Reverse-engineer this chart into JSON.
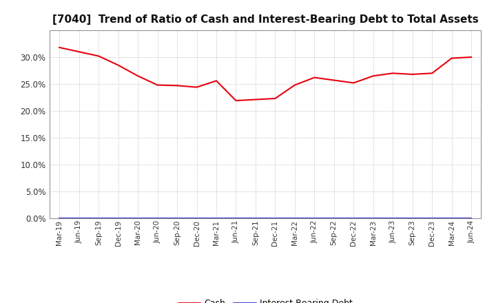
{
  "title": "[7040]  Trend of Ratio of Cash and Interest-Bearing Debt to Total Assets",
  "title_fontsize": 11,
  "cash_data": {
    "labels": [
      "Mar-19",
      "Jun-19",
      "Sep-19",
      "Dec-19",
      "Mar-20",
      "Jun-20",
      "Sep-20",
      "Dec-20",
      "Mar-21",
      "Jun-21",
      "Sep-21",
      "Dec-21",
      "Mar-22",
      "Jun-22",
      "Sep-22",
      "Dec-22",
      "Mar-23",
      "Jun-23",
      "Sep-23",
      "Dec-23",
      "Mar-24",
      "Jun-24"
    ],
    "values": [
      0.318,
      0.31,
      0.302,
      0.285,
      0.265,
      0.248,
      0.247,
      0.244,
      0.256,
      0.219,
      0.221,
      0.223,
      0.248,
      0.262,
      0.257,
      0.252,
      0.265,
      0.27,
      0.268,
      0.27,
      0.298,
      0.3
    ],
    "color": "#e8000d"
  },
  "debt_data": {
    "values": [
      0.0,
      0.0,
      0.0,
      0.0,
      0.0,
      0.0,
      0.0,
      0.0,
      0.0,
      0.0,
      0.0,
      0.0,
      0.0,
      0.0,
      0.0,
      0.0,
      0.0,
      0.0,
      0.0,
      0.0,
      0.0,
      0.0
    ],
    "color": "#3333cc"
  },
  "ylim": [
    0.0,
    0.35
  ],
  "yticks": [
    0.0,
    0.05,
    0.1,
    0.15,
    0.2,
    0.25,
    0.3
  ],
  "background_color": "#ffffff",
  "grid_color": "#aaaaaa",
  "legend_labels": [
    "Cash",
    "Interest-Bearing Debt"
  ],
  "legend_colors": [
    "#e8000d",
    "#3333cc"
  ],
  "figsize": [
    7.2,
    4.4
  ],
  "dpi": 100
}
